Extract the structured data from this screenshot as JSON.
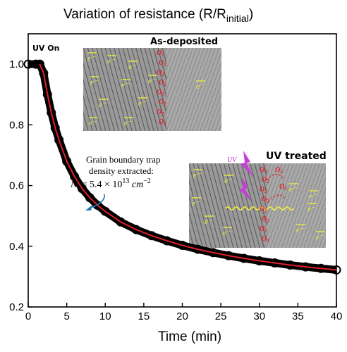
{
  "chart_data": {
    "type": "line",
    "title_main": "Variation of resistance (R/R",
    "title_sub": "initial",
    "title_close": ")",
    "xlabel": "Time (min)",
    "ylabel": "",
    "xlim": [
      0,
      40
    ],
    "ylim": [
      0.2,
      1.1
    ],
    "xticks": [
      "0",
      "5",
      "10",
      "15",
      "20",
      "25",
      "30",
      "35",
      "40"
    ],
    "yticks": [
      "0.2",
      "0.4",
      "0.6",
      "0.8",
      "1.0"
    ],
    "colors": {
      "markers": "#000000",
      "fit": "#e0202a",
      "annotation_arrow": "#1f77b4",
      "uv_bolt": "#c83cdc"
    },
    "series": [
      {
        "kind": "measured",
        "x": [
          0,
          1,
          1.5,
          2,
          2.5,
          3,
          3.5,
          4,
          5,
          6,
          7,
          8,
          9,
          10,
          12,
          14,
          16,
          18,
          20,
          22,
          24,
          26,
          28,
          30,
          32,
          34,
          36,
          38,
          40
        ],
        "y": [
          1.0,
          1.0,
          1.0,
          0.97,
          0.9,
          0.84,
          0.79,
          0.75,
          0.68,
          0.63,
          0.59,
          0.56,
          0.535,
          0.515,
          0.48,
          0.455,
          0.435,
          0.418,
          0.403,
          0.39,
          0.379,
          0.369,
          0.36,
          0.352,
          0.345,
          0.338,
          0.332,
          0.327,
          0.322
        ]
      }
    ],
    "annotations": {
      "uv_on": "UV On",
      "as_deposited": "As-deposited",
      "uv_treated": "UV treated",
      "trap_line1": "Grain boundary trap",
      "trap_line2": "density extracted:",
      "formula_lhs": "N",
      "formula_sub": "t",
      "formula_eq": " = 5.4 × 10",
      "formula_exp": "13",
      "formula_unit": " cm",
      "formula_unit_exp": "−2",
      "o2_label": "O",
      "o2_sub": "2",
      "e_label": "e",
      "uv_label": "UV"
    }
  }
}
